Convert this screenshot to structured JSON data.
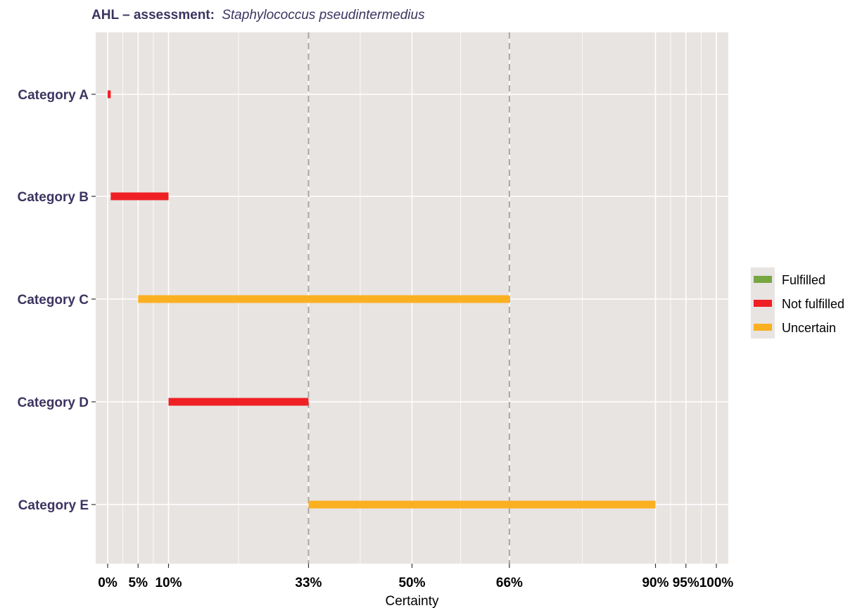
{
  "title": {
    "bold": "AHL – assessment:",
    "italic": "Staphylococcus pseudintermedius"
  },
  "chart_data": {
    "type": "bar",
    "orientation": "horizontal-range",
    "categories": [
      "Category A",
      "Category B",
      "Category C",
      "Category D",
      "Category E"
    ],
    "ranges": [
      {
        "category": "Category A",
        "start": 0,
        "end": 0.5,
        "status": "Not fulfilled"
      },
      {
        "category": "Category B",
        "start": 0.5,
        "end": 10,
        "status": "Not fulfilled"
      },
      {
        "category": "Category C",
        "start": 5,
        "end": 66,
        "status": "Uncertain"
      },
      {
        "category": "Category D",
        "start": 10,
        "end": 33,
        "status": "Not fulfilled"
      },
      {
        "category": "Category E",
        "start": 33,
        "end": 90,
        "status": "Uncertain"
      }
    ],
    "x_ticks": [
      {
        "value": 0,
        "label": "0%"
      },
      {
        "value": 5,
        "label": "5%"
      },
      {
        "value": 10,
        "label": "10%"
      },
      {
        "value": 33,
        "label": "33%"
      },
      {
        "value": 50,
        "label": "50%"
      },
      {
        "value": 66,
        "label": "66%"
      },
      {
        "value": 90,
        "label": "90%"
      },
      {
        "value": 95,
        "label": "95%"
      },
      {
        "value": 100,
        "label": "100%"
      }
    ],
    "minor_gridlines": [
      2.5,
      7.5,
      21.5,
      41.5,
      58,
      78,
      92.5,
      97.5
    ],
    "reference_lines": [
      33,
      66
    ],
    "xlabel": "Certainty",
    "xlim": [
      0,
      100
    ],
    "legend": {
      "position": "right",
      "entries": [
        {
          "label": "Fulfilled",
          "color": "#77a643"
        },
        {
          "label": "Not fulfilled",
          "color": "#ee2024"
        },
        {
          "label": "Uncertain",
          "color": "#fbb021"
        }
      ]
    },
    "colors": {
      "Fulfilled": "#77a643",
      "Not fulfilled": "#ee2024",
      "Uncertain": "#fbb021",
      "panel": "#e8e4e2",
      "grid": "#ffffff",
      "reference": "#a8a8a8"
    }
  }
}
